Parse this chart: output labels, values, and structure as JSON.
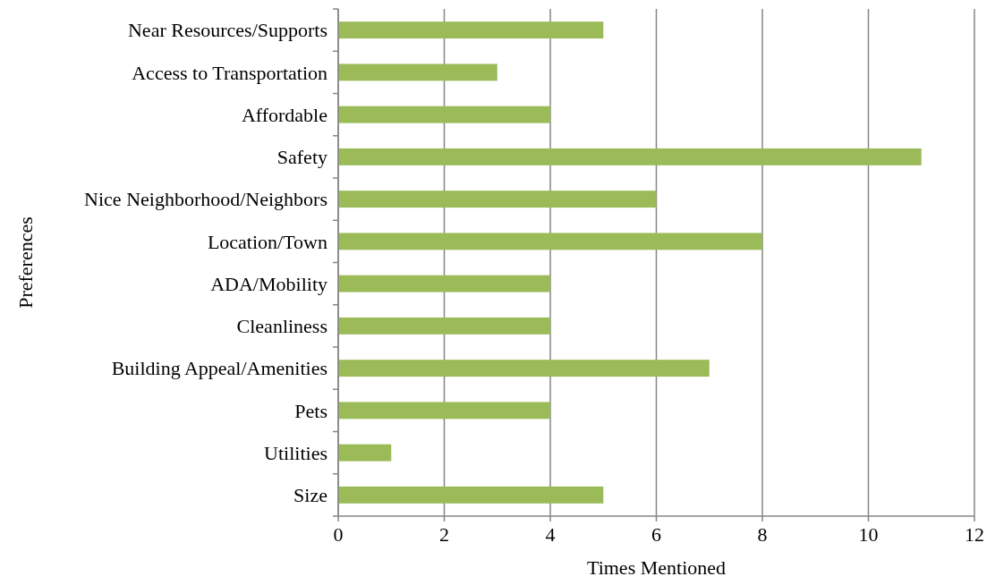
{
  "chart_data": {
    "type": "bar",
    "orientation": "horizontal",
    "xlabel": "Times Mentioned",
    "ylabel": "Preferences",
    "categories": [
      "Near Resources/Supports",
      "Access to Transportation",
      "Affordable",
      "Safety",
      "Nice Neighborhood/Neighbors",
      "Location/Town",
      "ADA/Mobility",
      "Cleanliness",
      "Building Appeal/Amenities",
      "Pets",
      "Utilities",
      "Size"
    ],
    "values": [
      5,
      3,
      4,
      11,
      6,
      8,
      4,
      4,
      7,
      4,
      1,
      5
    ],
    "color": "#9bbb59",
    "xlim": [
      0,
      12
    ],
    "xticks": [
      0,
      2,
      4,
      6,
      8,
      10,
      12
    ],
    "grid": "x"
  }
}
